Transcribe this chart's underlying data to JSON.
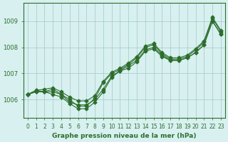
{
  "title": "Graphe pression niveau de la mer (hPa)",
  "bg_color": "#d8f0f0",
  "line_color": "#2d6e2d",
  "grid_color": "#a0c8c8",
  "x_ticks": [
    0,
    1,
    2,
    3,
    4,
    5,
    6,
    7,
    8,
    9,
    10,
    11,
    12,
    13,
    14,
    15,
    16,
    17,
    18,
    19,
    20,
    21,
    22,
    23
  ],
  "ylim": [
    1005.3,
    1009.7
  ],
  "yticks": [
    1006,
    1007,
    1008,
    1009
  ],
  "series": [
    [
      1006.2,
      1006.3,
      1006.3,
      1006.4,
      1006.2,
      1005.9,
      1005.8,
      1005.8,
      1006.0,
      1006.4,
      1006.9,
      1007.1,
      1007.3,
      1007.5,
      1007.9,
      1008.0,
      1007.7,
      1007.5,
      1007.5,
      1007.6,
      1007.8,
      1008.1,
      1009.0,
      1008.5
    ],
    [
      1006.2,
      1006.35,
      1006.3,
      1006.2,
      1006.1,
      1005.85,
      1005.65,
      1005.65,
      1005.9,
      1006.3,
      1006.85,
      1007.1,
      1007.2,
      1007.45,
      1007.85,
      1007.95,
      1007.65,
      1007.5,
      1007.5,
      1007.6,
      1007.8,
      1008.1,
      1009.0,
      1008.5
    ],
    [
      1006.2,
      1006.3,
      1006.3,
      1006.3,
      1006.2,
      1006.0,
      1005.75,
      1005.75,
      1006.05,
      1006.65,
      1007.0,
      1007.15,
      1007.35,
      1007.6,
      1008.0,
      1008.1,
      1007.75,
      1007.55,
      1007.55,
      1007.65,
      1007.9,
      1008.2,
      1009.1,
      1008.6
    ],
    [
      1006.2,
      1006.35,
      1006.4,
      1006.45,
      1006.3,
      1006.1,
      1005.95,
      1005.95,
      1006.15,
      1006.7,
      1007.05,
      1007.2,
      1007.4,
      1007.65,
      1008.05,
      1008.15,
      1007.8,
      1007.6,
      1007.6,
      1007.7,
      1007.95,
      1008.25,
      1009.15,
      1008.65
    ]
  ]
}
